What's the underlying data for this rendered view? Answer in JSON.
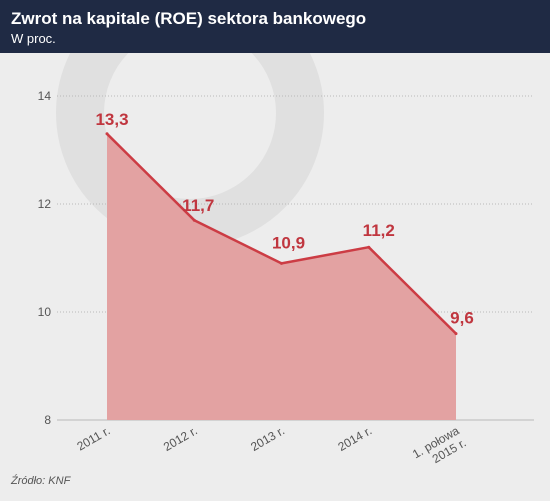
{
  "header": {
    "title": "Zwrot na kapitale (ROE) sektora bankowego",
    "subtitle": "W proc."
  },
  "source": "Źródło: KNF",
  "colors": {
    "header_bg": "#1f2a44",
    "chart_bg": "#ededed",
    "area_fill": "#e3a2a2",
    "line": "#cc3c44",
    "label": "#c0363f",
    "axis_text": "#555555",
    "grid": "#b9b9b9",
    "watermark": "#e0e0e0"
  },
  "chart_data": {
    "type": "area",
    "categories": [
      "2011 r.",
      "2012 r.",
      "2013 r.",
      "2014 r.",
      "1. połowa 2015 r."
    ],
    "values": [
      13.3,
      11.7,
      10.9,
      11.2,
      9.6
    ],
    "data_labels": [
      "13,3",
      "11,7",
      "10,9",
      "11,2",
      "9,6"
    ],
    "y_ticks": [
      8,
      10,
      12,
      14
    ],
    "ylim": [
      8,
      14
    ],
    "grid": "horizontal"
  }
}
